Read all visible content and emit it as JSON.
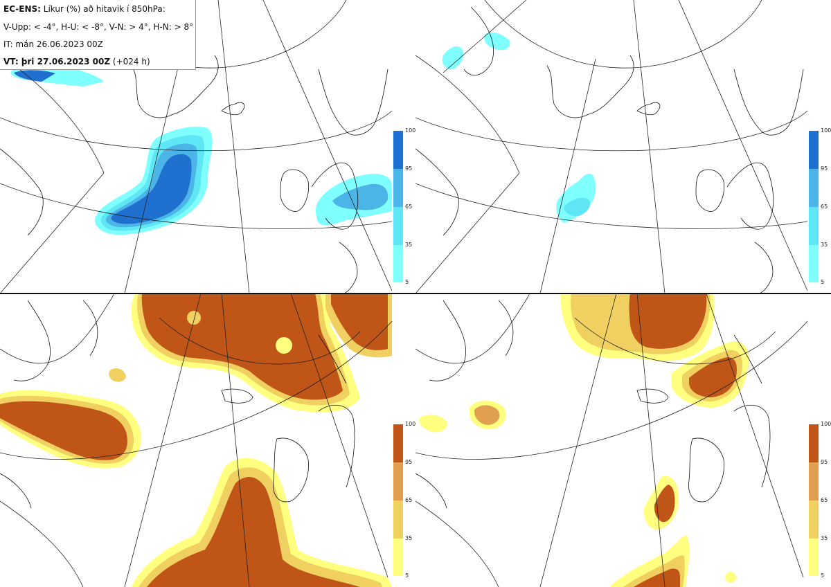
{
  "info": {
    "title_bold": "EC-ENS:",
    "title_rest": " Líkur (%) að hitavik í 850hPa:",
    "categories_line": "V-Upp: < -4°, H-U: < -8°, V-N: > 4°, H-N: > 8°",
    "initial_time": "IT: mán 26.06.2023 00Z",
    "valid_time_bold": "VT: þri 27.06.2023 00Z",
    "valid_time_rest": " (+024 h)"
  },
  "colorbar_ticks": [
    "100",
    "95",
    "65",
    "35",
    "5"
  ],
  "colors": {
    "cold_5": "#80ffff",
    "cold_35": "#5fe6f5",
    "cold_65": "#4cb5e8",
    "cold_95": "#2070d0",
    "warm_5": "#ffff80",
    "warm_35": "#f0d060",
    "warm_65": "#e0a050",
    "warm_95": "#c05518"
  },
  "panels": [
    {
      "name": "upper-left",
      "field": "V-Upp"
    },
    {
      "name": "upper-right",
      "field": "H-U"
    },
    {
      "name": "lower-left",
      "field": "V-N"
    },
    {
      "name": "lower-right",
      "field": "H-N"
    }
  ]
}
